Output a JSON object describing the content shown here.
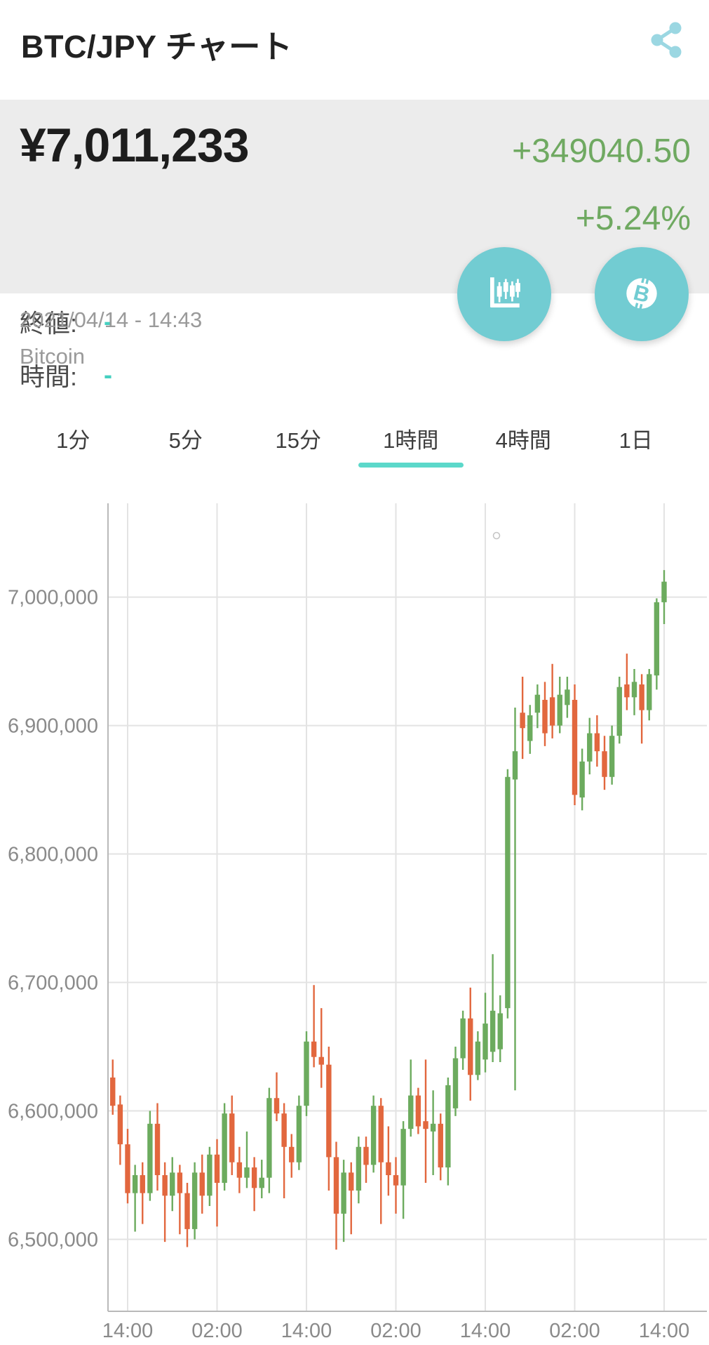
{
  "header": {
    "title": "BTC/JPY チャート"
  },
  "price_panel": {
    "price": "¥7,011,233",
    "change_abs": "+349040.50",
    "change_pct": "+5.24%",
    "datetime": "2021/04/14 - 14:43",
    "asset_name": "Bitcoin"
  },
  "info_rows": [
    {
      "label": "終値:",
      "value": "-"
    },
    {
      "label": "時間:",
      "value": "-"
    }
  ],
  "tabs": {
    "items": [
      "1分",
      "5分",
      "15分",
      "1時間",
      "4時間",
      "1日"
    ],
    "active": "1時間",
    "active_index": 3
  },
  "colors": {
    "accent_teal": "#72ccd2",
    "share_icon_teal": "#9bd7e2",
    "underline_teal": "#5cd8ca",
    "dash_teal": "#45d0c0",
    "text_green": "#6fa961",
    "panel_gray": "#ececec",
    "grid_gray": "#e3e3e3",
    "axis_gray": "#b9b9b9",
    "tick_text_gray": "#8a8a8a"
  },
  "chart_data": {
    "type": "candlestick",
    "pair": "BTC/JPY",
    "timeframe": "1時間",
    "grid": true,
    "colors": {
      "up": "#6cab5e",
      "down": "#e2673e"
    },
    "y_axis": {
      "ticks": [
        "7,000,000",
        "6,900,000",
        "6,800,000",
        "6,700,000",
        "6,600,000",
        "6,500,000"
      ],
      "tick_values": [
        7000000,
        6900000,
        6800000,
        6700000,
        6600000,
        6500000
      ],
      "min": 6444000,
      "max": 7073000
    },
    "x_axis": {
      "labels": [
        "14:00",
        "02:00",
        "14:00",
        "02:00",
        "14:00",
        "02:00",
        "14:00"
      ],
      "label_candle_indices": [
        2,
        14,
        26,
        38,
        50,
        62,
        74
      ]
    },
    "candles": [
      [
        6626000,
        6640000,
        6597000,
        6604000
      ],
      [
        6605000,
        6612000,
        6558000,
        6574000
      ],
      [
        6574000,
        6586000,
        6528000,
        6536000
      ],
      [
        6536000,
        6558000,
        6506000,
        6550000
      ],
      [
        6550000,
        6560000,
        6512000,
        6536000
      ],
      [
        6536000,
        6600000,
        6530000,
        6590000
      ],
      [
        6590000,
        6606000,
        6538000,
        6550000
      ],
      [
        6550000,
        6560000,
        6498000,
        6534000
      ],
      [
        6534000,
        6564000,
        6522000,
        6552000
      ],
      [
        6552000,
        6558000,
        6504000,
        6536000
      ],
      [
        6536000,
        6544000,
        6494000,
        6508000
      ],
      [
        6508000,
        6560000,
        6500000,
        6552000
      ],
      [
        6552000,
        6566000,
        6520000,
        6534000
      ],
      [
        6534000,
        6572000,
        6526000,
        6566000
      ],
      [
        6566000,
        6578000,
        6510000,
        6544000
      ],
      [
        6544000,
        6606000,
        6538000,
        6598000
      ],
      [
        6598000,
        6612000,
        6550000,
        6560000
      ],
      [
        6560000,
        6572000,
        6536000,
        6548000
      ],
      [
        6548000,
        6584000,
        6540000,
        6556000
      ],
      [
        6556000,
        6564000,
        6522000,
        6540000
      ],
      [
        6540000,
        6562000,
        6532000,
        6548000
      ],
      [
        6548000,
        6618000,
        6536000,
        6610000
      ],
      [
        6610000,
        6630000,
        6592000,
        6598000
      ],
      [
        6598000,
        6606000,
        6532000,
        6572000
      ],
      [
        6572000,
        6582000,
        6548000,
        6560000
      ],
      [
        6560000,
        6612000,
        6554000,
        6604000
      ],
      [
        6604000,
        6662000,
        6596000,
        6654000
      ],
      [
        6654000,
        6698000,
        6634000,
        6642000
      ],
      [
        6642000,
        6680000,
        6618000,
        6636000
      ],
      [
        6636000,
        6650000,
        6538000,
        6564000
      ],
      [
        6564000,
        6576000,
        6492000,
        6520000
      ],
      [
        6520000,
        6562000,
        6498000,
        6552000
      ],
      [
        6552000,
        6560000,
        6504000,
        6538000
      ],
      [
        6538000,
        6580000,
        6528000,
        6572000
      ],
      [
        6572000,
        6580000,
        6544000,
        6558000
      ],
      [
        6558000,
        6612000,
        6552000,
        6604000
      ],
      [
        6604000,
        6610000,
        6512000,
        6560000
      ],
      [
        6560000,
        6588000,
        6534000,
        6550000
      ],
      [
        6550000,
        6564000,
        6520000,
        6542000
      ],
      [
        6542000,
        6592000,
        6516000,
        6586000
      ],
      [
        6586000,
        6640000,
        6580000,
        6612000
      ],
      [
        6612000,
        6618000,
        6582000,
        6588000
      ],
      [
        6592000,
        6640000,
        6544000,
        6586000
      ],
      [
        6584000,
        6616000,
        6550000,
        6590000
      ],
      [
        6590000,
        6598000,
        6546000,
        6556000
      ],
      [
        6556000,
        6626000,
        6542000,
        6620000
      ],
      [
        6602000,
        6650000,
        6596000,
        6641000
      ],
      [
        6641000,
        6678000,
        6632000,
        6672000
      ],
      [
        6672000,
        6696000,
        6608000,
        6628000
      ],
      [
        6628000,
        6662000,
        6624000,
        6654000
      ],
      [
        6640000,
        6692000,
        6630000,
        6668000
      ],
      [
        6646000,
        6722000,
        6638000,
        6678000
      ],
      [
        6648000,
        6690000,
        6638000,
        6676000
      ],
      [
        6680000,
        6866000,
        6672000,
        6860000
      ],
      [
        6858000,
        6914000,
        6616000,
        6880000
      ],
      [
        6910000,
        6938000,
        6874000,
        6898000
      ],
      [
        6888000,
        6916000,
        6878000,
        6908000
      ],
      [
        6910000,
        6932000,
        6898000,
        6924000
      ],
      [
        6920000,
        6934000,
        6884000,
        6894000
      ],
      [
        6922000,
        6948000,
        6890000,
        6900000
      ],
      [
        6900000,
        6938000,
        6894000,
        6924000
      ],
      [
        6916000,
        6938000,
        6906000,
        6928000
      ],
      [
        6920000,
        6932000,
        6838000,
        6846000
      ],
      [
        6844000,
        6882000,
        6834000,
        6872000
      ],
      [
        6872000,
        6906000,
        6862000,
        6894000
      ],
      [
        6894000,
        6908000,
        6868000,
        6880000
      ],
      [
        6880000,
        6892000,
        6850000,
        6860000
      ],
      [
        6860000,
        6900000,
        6854000,
        6892000
      ],
      [
        6892000,
        6938000,
        6886000,
        6930000
      ],
      [
        6932000,
        6956000,
        6912000,
        6922000
      ],
      [
        6922000,
        6944000,
        6908000,
        6934000
      ],
      [
        6932000,
        6940000,
        6886000,
        6912000
      ],
      [
        6912000,
        6944000,
        6904000,
        6940000
      ],
      [
        6939000,
        6999000,
        6928000,
        6996000
      ],
      [
        6996000,
        7021000,
        6979000,
        7012000
      ]
    ]
  }
}
